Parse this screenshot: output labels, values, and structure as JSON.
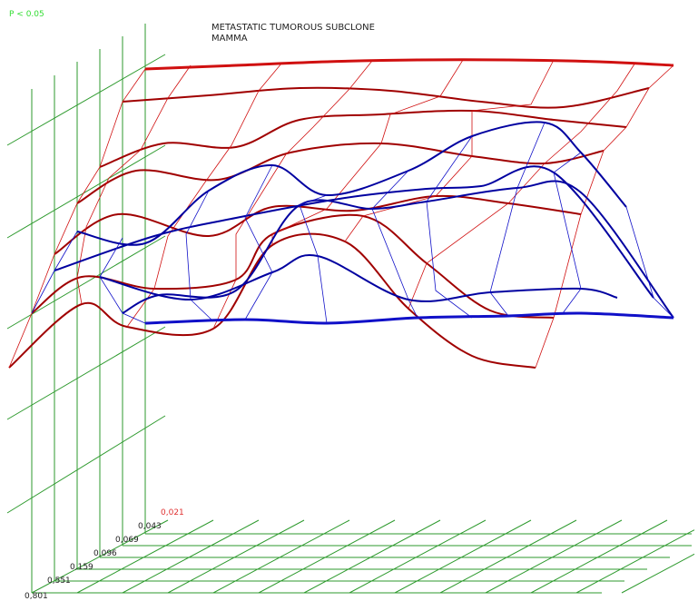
{
  "chart_data": {
    "type": "surface-3d",
    "title_lines": [
      "METASTATIC TUMOROUS SUBCLONE",
      "MAMMA"
    ],
    "significance_label": "P < 0.05",
    "depth_tick_labels": [
      "0,021",
      "0,043",
      "0,069",
      "0,096",
      "0,159",
      "0,551",
      "0,801"
    ],
    "highlighted_tick": "0,021",
    "colors": {
      "grid": "#2e9a2e",
      "significance": "#33dd33",
      "highlight_tick": "#e03030",
      "surface_red": "#d01010",
      "surface_red_dark": "#a00000",
      "surface_blue": "#1010c8",
      "surface_blue_dark": "#0000a0"
    }
  }
}
